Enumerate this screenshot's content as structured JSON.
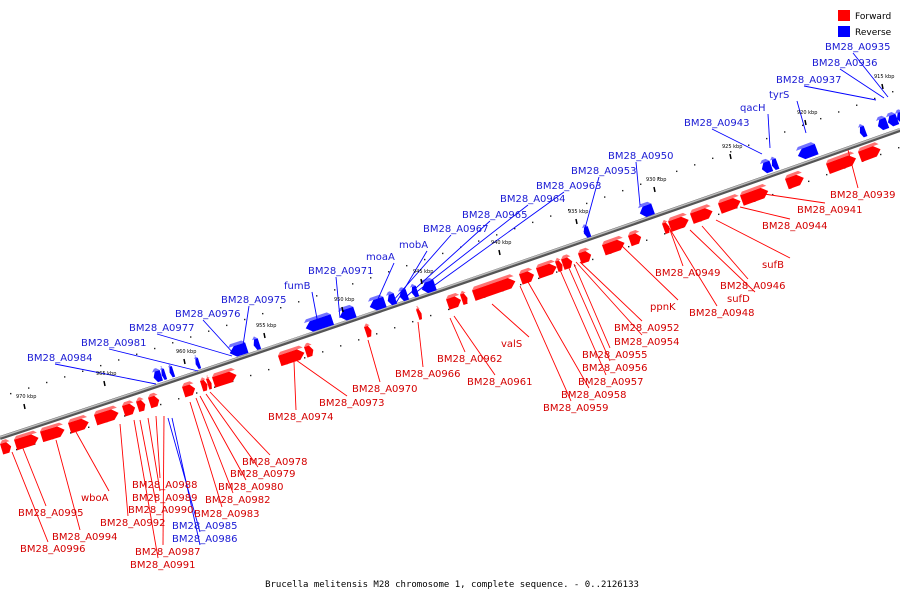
{
  "caption": "Brucella melitensis M28 chromosome 1, complete sequence. - 0..2126133",
  "legend": [
    {
      "label": "Forward",
      "color": "#ff0000"
    },
    {
      "label": "Reverse",
      "color": "#0000ff"
    }
  ],
  "colors": {
    "forward": "#ff0000",
    "reverse": "#0000ff",
    "forward_label": "#d40000",
    "reverse_label": "#1a1ad4",
    "backbone": "#888888"
  },
  "scale_labels": [
    "915 kbp",
    "920 kbp",
    "925 kbp",
    "930 kbp",
    "935 kbp",
    "940 kbp",
    "945 kbp",
    "950 kbp",
    "955 kbp",
    "960 kbp",
    "965 kbp",
    "970 kbp"
  ],
  "reverse_gene_labels": [
    "BM28_A0935",
    "BM28_A0936",
    "BM28_A0937",
    "tyrS",
    "qacH",
    "BM28_A0943",
    "BM28_A0950",
    "BM28_A0953",
    "BM28_A0963",
    "BM28_A0964",
    "BM28_A0965",
    "BM28_A0967",
    "mobA",
    "moaA",
    "BM28_A0971",
    "fumB",
    "BM28_A0975",
    "BM28_A0976",
    "BM28_A0977",
    "BM28_A0981",
    "BM28_A0984",
    "BM28_A0985",
    "BM28_A0986"
  ],
  "forward_gene_labels": [
    "BM28_A0939",
    "BM28_A0941",
    "BM28_A0944",
    "sufB",
    "BM28_A0946",
    "sufD",
    "BM28_A0948",
    "BM28_A0949",
    "ppnK",
    "BM28_A0952",
    "BM28_A0954",
    "BM28_A0955",
    "BM28_A0956",
    "BM28_A0957",
    "BM28_A0958",
    "BM28_A0959",
    "valS",
    "BM28_A0961",
    "BM28_A0962",
    "BM28_A0966",
    "BM28_A0970",
    "BM28_A0973",
    "BM28_A0974",
    "BM28_A0978",
    "BM28_A0979",
    "BM28_A0980",
    "BM28_A0982",
    "BM28_A0983",
    "BM28_A0987",
    "BM28_A0988",
    "BM28_A0989",
    "BM28_A0990",
    "BM28_A0991",
    "BM28_A0992",
    "wboA",
    "BM28_A0994",
    "BM28_A0995",
    "BM28_A0996"
  ]
}
